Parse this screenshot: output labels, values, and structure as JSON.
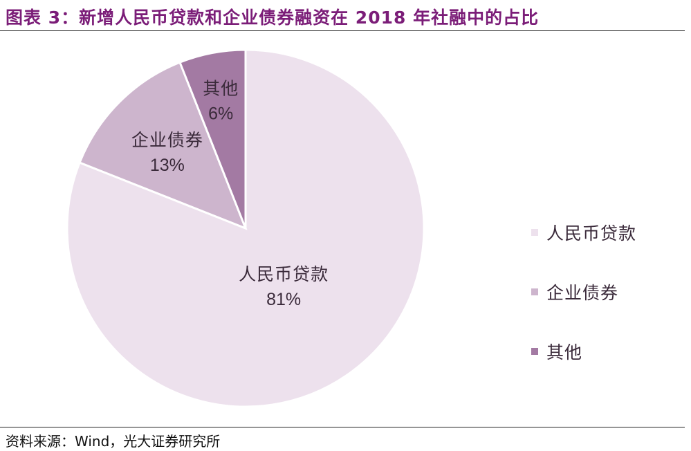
{
  "header": {
    "title": "图表 3：新增人民币贷款和企业债券融资在 2018 年社融中的占比"
  },
  "footer": {
    "source": "资料来源：Wind，光大证券研究所"
  },
  "chart_data": {
    "type": "pie",
    "title": "图表 3：新增人民币贷款和企业债券融资在 2018 年社融中的占比",
    "categories": [
      "人民币贷款",
      "企业债券",
      "其他"
    ],
    "values": [
      81,
      13,
      6
    ],
    "unit": "%",
    "data_labels": [
      "81%",
      "13%",
      "6%"
    ],
    "colors": [
      "#ede1ed",
      "#cdb5cd",
      "#a37aa3"
    ],
    "legend_position": "right",
    "start_angle_deg": 0,
    "direction": "counterclockwise"
  }
}
